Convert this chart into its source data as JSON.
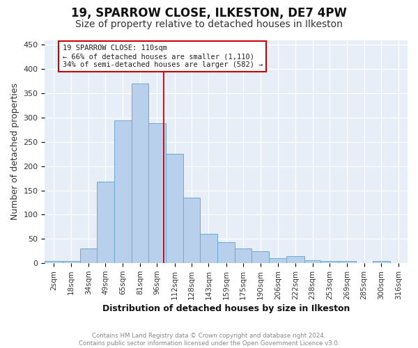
{
  "title": "19, SPARROW CLOSE, ILKESTON, DE7 4PW",
  "subtitle": "Size of property relative to detached houses in Ilkeston",
  "xlabel": "Distribution of detached houses by size in Ilkeston",
  "ylabel": "Number of detached properties",
  "footer": "Contains HM Land Registry data © Crown copyright and database right 2024.\nContains public sector information licensed under the Open Government Licence v3.0.",
  "bar_labels": [
    "2sqm",
    "18sqm",
    "34sqm",
    "49sqm",
    "65sqm",
    "81sqm",
    "96sqm",
    "112sqm",
    "128sqm",
    "143sqm",
    "159sqm",
    "175sqm",
    "190sqm",
    "206sqm",
    "222sqm",
    "238sqm",
    "253sqm",
    "269sqm",
    "285sqm",
    "300sqm",
    "316sqm"
  ],
  "bar_values": [
    4,
    4,
    30,
    168,
    295,
    370,
    288,
    226,
    135,
    60,
    43,
    31,
    25,
    11,
    14,
    6,
    5,
    4,
    1,
    4,
    0
  ],
  "bin_edges": [
    2,
    18,
    34,
    49,
    65,
    81,
    96,
    112,
    128,
    143,
    159,
    175,
    190,
    206,
    222,
    238,
    253,
    269,
    285,
    300,
    316,
    332
  ],
  "bar_color": "#b8d0eb",
  "bar_edge_color": "#6aaad4",
  "vline_x": 110,
  "annotation_text": "19 SPARROW CLOSE: 110sqm\n← 66% of detached houses are smaller (1,110)\n34% of semi-detached houses are larger (582) →",
  "annotation_box_color": "#ffffff",
  "annotation_box_edge": "#cc0000",
  "vline_color": "#cc0000",
  "ylim": [
    0,
    460
  ],
  "background_color": "#e8eef8",
  "grid_color": "#ffffff",
  "title_fontsize": 12,
  "subtitle_fontsize": 10,
  "axis_fontsize": 9,
  "tick_fontsize": 7.5
}
